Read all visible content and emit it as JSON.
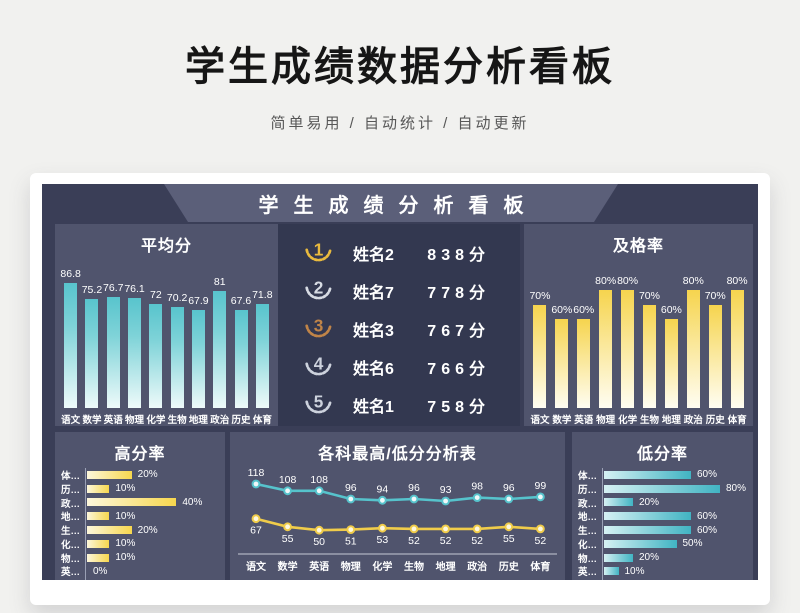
{
  "page": {
    "title": "学生成绩数据分析看板",
    "subtitle": "简单易用 / 自动统计 / 自动更新"
  },
  "board": {
    "title": "学生成绩分析看板"
  },
  "colors": {
    "teal": "#56c3cc",
    "yellow": "#f7d74e",
    "board_bg": "#3a3e57",
    "panel_bg": "#50546d",
    "ranking_bg": "#333850",
    "banner_bg": "#5b5f79",
    "line_high": "#56c3cc",
    "line_low": "#f0cc4a",
    "medals": [
      "#e9ba3e",
      "#d7dbe3",
      "#c08448",
      "#cdd2dd",
      "#cdd2dd"
    ]
  },
  "chart_data": [
    {
      "id": "average_score",
      "type": "bar",
      "title": "平均分",
      "categories": [
        "语文",
        "数学",
        "英语",
        "物理",
        "化学",
        "生物",
        "地理",
        "政治",
        "历史",
        "体育"
      ],
      "values": [
        86.8,
        75.2,
        76.7,
        76.1,
        72,
        70.2,
        67.9,
        81,
        67.6,
        71.8
      ],
      "unit": "",
      "ylim": [
        0,
        90
      ],
      "grid": false,
      "legend": "none"
    },
    {
      "id": "total_score_ranking",
      "type": "table",
      "columns": [
        "rank",
        "name",
        "score"
      ],
      "unit": "分",
      "rows": [
        {
          "rank": 1,
          "name": "姓名2",
          "score": 838
        },
        {
          "rank": 2,
          "name": "姓名7",
          "score": 778
        },
        {
          "rank": 3,
          "name": "姓名3",
          "score": 767
        },
        {
          "rank": 4,
          "name": "姓名6",
          "score": 766
        },
        {
          "rank": 5,
          "name": "姓名1",
          "score": 758
        }
      ]
    },
    {
      "id": "pass_rate",
      "type": "bar",
      "title": "及格率",
      "categories": [
        "语文",
        "数学",
        "英语",
        "物理",
        "化学",
        "生物",
        "地理",
        "政治",
        "历史",
        "体育"
      ],
      "values": [
        70,
        60,
        60,
        80,
        80,
        70,
        60,
        80,
        70,
        80
      ],
      "unit": "%",
      "ylim": [
        0,
        88
      ],
      "grid": false,
      "legend": "none"
    },
    {
      "id": "high_score_rate",
      "type": "bar-horizontal",
      "title": "高分率",
      "categories": [
        "体…",
        "历…",
        "政…",
        "地…",
        "生…",
        "化…",
        "物…",
        "英…",
        "数…"
      ],
      "values": [
        20,
        10,
        40,
        10,
        20,
        10,
        10,
        0,
        0
      ],
      "unit": "%",
      "xlim": [
        0,
        60
      ],
      "grid": false,
      "legend": "none"
    },
    {
      "id": "max_min_analysis",
      "type": "line",
      "title": "各科最高/低分分析表",
      "categories": [
        "语文",
        "数学",
        "英语",
        "物理",
        "化学",
        "生物",
        "地理",
        "政治",
        "历史",
        "体育"
      ],
      "series": [
        {
          "name": "最高分",
          "values": [
            118,
            108,
            108,
            96,
            94,
            96,
            93,
            98,
            96,
            99
          ]
        },
        {
          "name": "最低分",
          "values": [
            67,
            55,
            50,
            51,
            53,
            52,
            52,
            52,
            55,
            52
          ]
        }
      ],
      "ylim": [
        45,
        125
      ],
      "grid": false,
      "legend": "none"
    },
    {
      "id": "low_score_rate",
      "type": "bar-horizontal",
      "title": "低分率",
      "categories": [
        "体…",
        "历…",
        "政…",
        "地…",
        "生…",
        "化…",
        "物…",
        "英…",
        "数…"
      ],
      "values": [
        60,
        80,
        20,
        60,
        60,
        50,
        20,
        10,
        40
      ],
      "unit": "%",
      "xlim": [
        0,
        100
      ],
      "grid": false,
      "legend": "none"
    }
  ]
}
